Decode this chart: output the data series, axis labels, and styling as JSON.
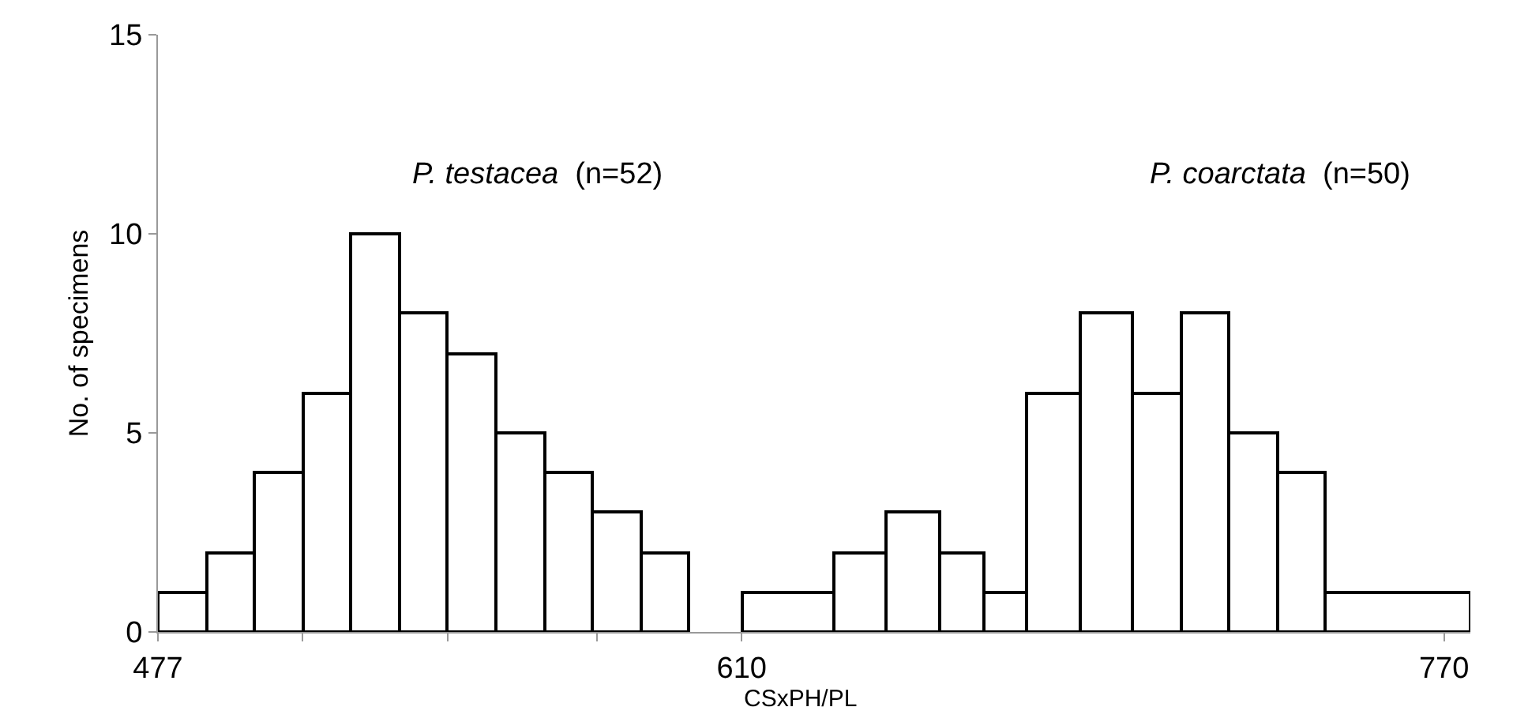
{
  "chart_data": {
    "type": "histogram",
    "xlabel": "CSxPH/PL",
    "ylabel": "No. of specimens",
    "bins": [
      477,
      488,
      499,
      510,
      521,
      532,
      543,
      554,
      565,
      576,
      587,
      598,
      610,
      631,
      643,
      655,
      665,
      675,
      687,
      699,
      710,
      721,
      732,
      743,
      776
    ],
    "values": [
      1,
      2,
      4,
      6,
      10,
      8,
      7,
      5,
      4,
      3,
      2,
      null,
      1,
      2,
      3,
      2,
      1,
      6,
      8,
      6,
      8,
      5,
      4,
      1
    ],
    "color": "#ffffff",
    "xlim": [
      477,
      776
    ],
    "xticks": [
      477,
      {
        "value": 510,
        "label": null
      },
      {
        "value": 543,
        "label": null
      },
      {
        "value": 577,
        "label": null
      },
      610,
      770
    ],
    "ylim": [
      0,
      15
    ],
    "yticks": [
      0,
      5,
      10,
      15
    ],
    "annotations": [
      "P. testacea (n=52)",
      "P. coarctata (n=50)"
    ]
  }
}
